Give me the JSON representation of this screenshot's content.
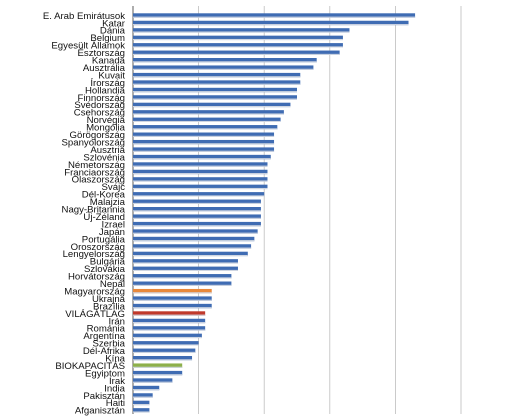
{
  "chart_data": {
    "type": "bar",
    "orientation": "horizontal",
    "title": "",
    "xlabel": "",
    "ylabel": "",
    "xlim": [
      0,
      10
    ],
    "grid": true,
    "gridlines_x": [
      0,
      2,
      4,
      6,
      8,
      10
    ],
    "tick_labels_visible": false,
    "legend": "none",
    "colors": {
      "default": "#3f6cb3",
      "highlight_hungary": "#e8883a",
      "highlight_world": "#c0392b",
      "highlight_biocapacity": "#8db04a",
      "gridline": "#bdbdbd"
    },
    "categories": [
      "E. Arab Emirátusok",
      "Katar",
      "Dánia",
      "Belgium",
      "Egyesült Államok",
      "Észtország",
      "Kanada",
      "Ausztrália",
      "Kuvait",
      "Írország",
      "Hollandia",
      "Finnország",
      "Svédország",
      "Csehország",
      "Norvégia",
      "Mongólia",
      "Görögország",
      "Spanyolország",
      "Ausztria",
      "Szlovénia",
      "Németország",
      "Franciaország",
      "Olaszország",
      "Svájc",
      "Dél-Korea",
      "Malajzia",
      "Nagy-Britannia",
      "Új-Zéland",
      "Izrael",
      "Japán",
      "Portugália",
      "Oroszország",
      "Lengyelország",
      "Bulgária",
      "Szlovákia",
      "Horvátország",
      "Nepál",
      "Magyarország",
      "Ukrajna",
      "Brazília",
      "VILÁGÁTLAG",
      "Irán",
      "Románia",
      "Argentína",
      "Szerbia",
      "Dél-Afrika",
      "Kína",
      "BIOKAPACITÁS",
      "Egyiptom",
      "Irak",
      "India",
      "Pakisztán",
      "Haiti",
      "Afganisztán"
    ],
    "values": [
      8.6,
      8.4,
      6.6,
      6.4,
      6.4,
      6.3,
      5.6,
      5.5,
      5.1,
      5.1,
      5.0,
      5.0,
      4.8,
      4.6,
      4.5,
      4.4,
      4.3,
      4.3,
      4.3,
      4.2,
      4.1,
      4.1,
      4.1,
      4.1,
      4.0,
      3.9,
      3.9,
      3.9,
      3.9,
      3.8,
      3.7,
      3.6,
      3.5,
      3.2,
      3.2,
      3.0,
      3.0,
      2.4,
      2.4,
      2.4,
      2.2,
      2.2,
      2.2,
      2.1,
      2.0,
      1.9,
      1.8,
      1.5,
      1.5,
      1.2,
      0.8,
      0.6,
      0.5,
      0.5
    ],
    "highlights": {
      "Magyarország": "highlight_hungary",
      "VILÁGÁTLAG": "highlight_world",
      "BIOKAPACITÁS": "highlight_biocapacity"
    }
  }
}
